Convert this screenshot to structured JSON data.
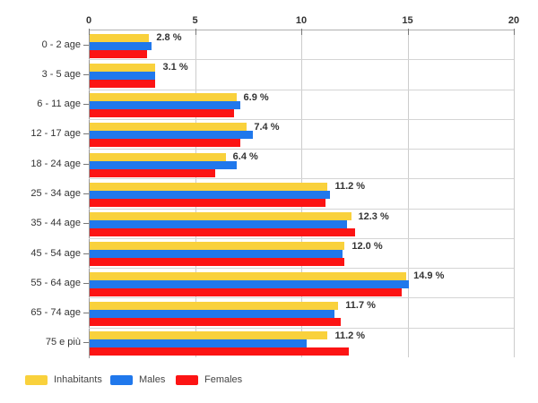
{
  "chart_data": {
    "type": "bar",
    "orientation": "horizontal",
    "title": "",
    "categories": [
      "0 - 2 age",
      "3 - 5 age",
      "6 - 11 age",
      "12 - 17 age",
      "18 - 24 age",
      "25 - 34 age",
      "35 - 44 age",
      "45 - 54 age",
      "55 - 64 age",
      "65 - 74 age",
      "75 e più"
    ],
    "series": [
      {
        "name": "Inhabitants",
        "color": "#F9D13C",
        "values": [
          2.8,
          3.1,
          6.9,
          7.4,
          6.4,
          11.2,
          12.3,
          12.0,
          14.9,
          11.7,
          11.2
        ]
      },
      {
        "name": "Males",
        "color": "#2078EC",
        "values": [
          2.9,
          3.1,
          7.1,
          7.7,
          6.9,
          11.3,
          12.1,
          11.9,
          15.0,
          11.5,
          10.2
        ]
      },
      {
        "name": "Females",
        "color": "#FC1414",
        "values": [
          2.7,
          3.1,
          6.8,
          7.1,
          5.9,
          11.1,
          12.5,
          12.0,
          14.7,
          11.8,
          12.2
        ]
      }
    ],
    "bar_labels": [
      "2.8 %",
      "3.1 %",
      "6.9 %",
      "7.4 %",
      "6.4 %",
      "11.2 %",
      "12.3 %",
      "12.0 %",
      "14.9 %",
      "11.7 %",
      "11.2 %"
    ],
    "x_axis": {
      "min": 0,
      "max": 20,
      "tick_values": [
        0,
        5,
        10,
        15,
        20
      ],
      "tick_labels": [
        "0",
        "5",
        "10",
        "15",
        "20"
      ],
      "position": "top"
    },
    "ylabel": "",
    "xlabel": "",
    "grid": true,
    "legend": {
      "position": "bottom-left",
      "entries": [
        {
          "label": "Inhabitants",
          "color": "#F9D13C"
        },
        {
          "label": "Males",
          "color": "#2078EC"
        },
        {
          "label": "Females",
          "color": "#FC1414"
        }
      ]
    }
  },
  "colors": {
    "grid": "#cccccc",
    "axis": "#9a9a9a",
    "text": "#333333"
  }
}
